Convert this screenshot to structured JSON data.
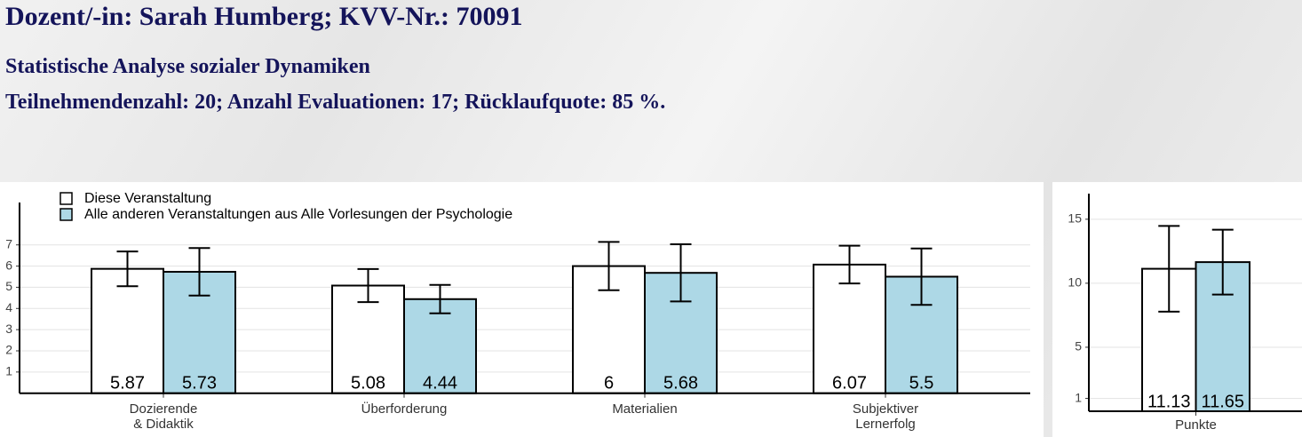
{
  "header": {
    "title": "Dozent/-in: Sarah Humberg; KVV-Nr.: 70091",
    "subtitle": "Statistische Analyse sozialer Dynamiken",
    "info": "Teilnehmendenzahl: 20; Anzahl Evaluationen: 17; Rücklaufquote: 85 %."
  },
  "chart_data": [
    {
      "type": "bar",
      "categories": [
        "Dozierende\n& Didaktik",
        "Überforderung",
        "Materialien",
        "Subjektiver\nLernerfolg"
      ],
      "series": [
        {
          "name": "Diese Veranstaltung",
          "color": "#ffffff",
          "values": [
            5.87,
            5.08,
            6,
            6.07
          ],
          "errors": [
            0.82,
            0.78,
            1.14,
            0.89
          ]
        },
        {
          "name": "Alle anderen Veranstaltungen aus Alle Vorlesungen der Psychologie",
          "color": "#add8e6",
          "values": [
            5.73,
            4.44,
            5.68,
            5.5
          ],
          "errors": [
            1.12,
            0.67,
            1.35,
            1.33
          ]
        }
      ],
      "ylim": [
        0,
        9
      ],
      "yticks": [
        1,
        2,
        3,
        4,
        5,
        6,
        7
      ],
      "grid": true,
      "legend": "top-left"
    },
    {
      "type": "bar",
      "categories": [
        "Punkte"
      ],
      "series": [
        {
          "color": "#ffffff",
          "values": [
            11.13
          ],
          "errors": [
            3.35
          ]
        },
        {
          "color": "#add8e6",
          "values": [
            11.65
          ],
          "errors": [
            2.53
          ]
        }
      ],
      "ylim": [
        0,
        17
      ],
      "yticks": [
        1,
        5,
        10,
        15
      ],
      "grid": true
    }
  ]
}
